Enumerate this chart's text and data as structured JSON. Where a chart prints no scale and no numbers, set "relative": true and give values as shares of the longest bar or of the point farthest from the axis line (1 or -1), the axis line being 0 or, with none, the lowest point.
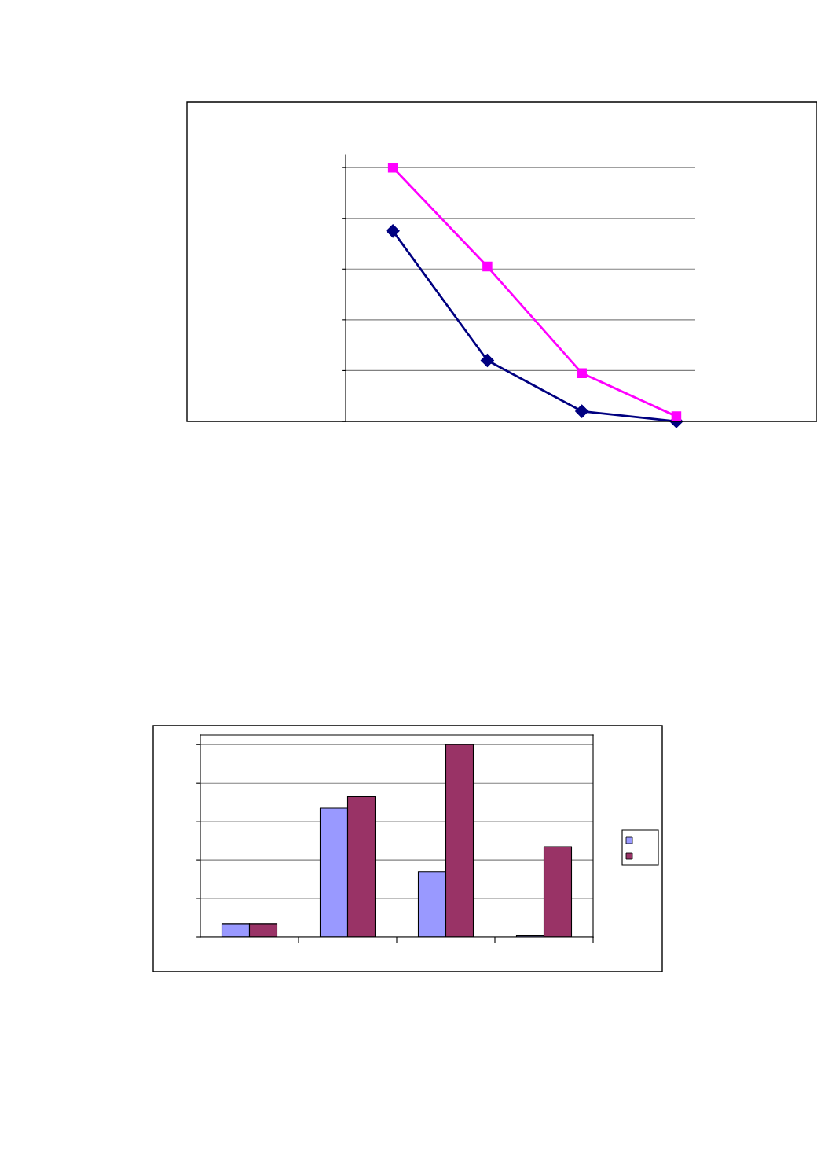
{
  "chart_data": [
    {
      "type": "line",
      "relative": true,
      "categories": [
        null,
        null,
        null,
        null
      ],
      "line_style": "solid",
      "grid": "y",
      "series": [
        {
          "color": "#000080",
          "marker": "diamond",
          "values": [
            0.75,
            0.24,
            0.04,
            0
          ]
        },
        {
          "color": "#ff00ff",
          "marker": "square",
          "values": [
            1,
            0.61,
            0.19,
            0.02
          ]
        }
      ]
    },
    {
      "type": "bar",
      "relative": true,
      "categories": [
        null,
        null,
        null,
        null
      ],
      "grid": "y",
      "series": [
        {
          "color": "#9999ff",
          "values": [
            0.07,
            0.67,
            0.34,
            0.01
          ]
        },
        {
          "color": "#993366",
          "values": [
            0.07,
            0.73,
            1,
            0.47
          ]
        }
      ]
    }
  ]
}
